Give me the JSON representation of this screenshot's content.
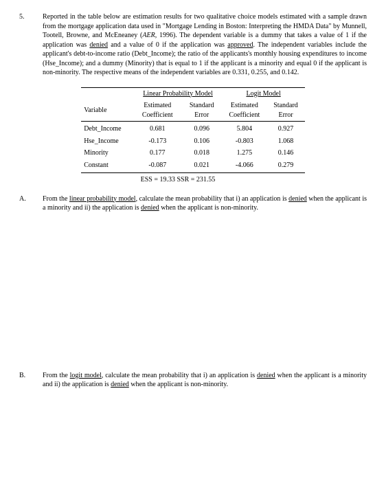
{
  "question": {
    "number": "5.",
    "intro_a": "Reported in the table below are estimation results for two qualitative choice models estimated with a sample drawn from the mortgage application data used in \"Mortgage Lending in Boston: Interpreting the HMDA Data\" by Munnell, Tootell, Browne, and McEneaney (",
    "intro_ital": "AER",
    "intro_b": ", 1996). The dependent variable is a dummy that takes a value of 1 if the application was ",
    "intro_deny": "denied",
    "intro_c": " and a value of 0 if the application was ",
    "intro_appr": "approved",
    "intro_d": ". The independent variables include the applicant's debt-to-income ratio (Debt_Income); the ratio of the applicants's monthly housing expenditures to income (Hse_Income); and a dummy (Minority) that is equal to 1 if the applicant is a minority and equal 0 if the applicant is non-minority. The respective means of the independent variables are 0.331, 0.255, and 0.142."
  },
  "table": {
    "group1": "Linear Probability Model",
    "group2": "Logit Model",
    "col_var": "Variable",
    "col_est": "Estimated Coefficient",
    "col_se": "Standard Error",
    "rows": [
      {
        "var": "Debt_Income",
        "c1": "0.681",
        "s1": "0.096",
        "c2": "5.804",
        "s2": "0.927"
      },
      {
        "var": "Hse_Income",
        "c1": "-0.173",
        "s1": "0.106",
        "c2": "-0.803",
        "s2": "1.068"
      },
      {
        "var": "Minority",
        "c1": "0.177",
        "s1": "0.018",
        "c2": "1.275",
        "s2": "0.146"
      },
      {
        "var": "Constant",
        "c1": "-0.087",
        "s1": "0.021",
        "c2": "-4.066",
        "s2": "0.279"
      }
    ],
    "ess": "ESS = 19.33  SSR = 231.55"
  },
  "partA": {
    "label": "A.",
    "t1": "From the ",
    "u1": "linear probability model",
    "t2": ", calculate the mean probability that i) an application is ",
    "u2": "denied",
    "t3": " when the applicant is a minority and ii) the application is ",
    "u3": "denied",
    "t4": " when the applicant is non-minority."
  },
  "partB": {
    "label": "B.",
    "t1": "From the ",
    "u1": "logit model",
    "t2": ", calculate the mean probability that i) an application is ",
    "u2": "denied",
    "t3": " when the applicant is a minority and ii) the application is ",
    "u3": "denied",
    "t4": " when the applicant is non-minority."
  }
}
